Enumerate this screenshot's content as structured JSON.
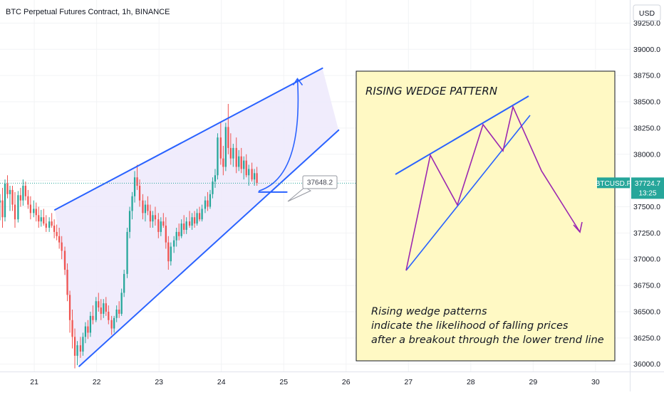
{
  "header": {
    "title": "BTC Perpetual Futures Contract, 1h, BINANCE"
  },
  "price_axis": {
    "currency": "USD"
  },
  "badges": {
    "symbol": "BTCUSD.P",
    "last_price": "37724.7",
    "countdown": "13:25"
  },
  "callout": {
    "value": "37648.2"
  },
  "note": {
    "title": "RISING WEDGE PATTERN",
    "lines": [
      "Rising wedge patterns",
      "indicate the likelihood of falling prices",
      "after a breakout through the lower trend line"
    ]
  },
  "colors": {
    "up": "#26a69a",
    "down": "#ef5350",
    "trendline": "#2962ff",
    "wedge_fill": "#ede9fb",
    "note_bg": "#fff9c4",
    "pattern_line": "#9c27b0",
    "badge": "#26a69a"
  },
  "chart_data": {
    "type": "candlestick",
    "title": "BTC Perpetual Futures Contract, 1h, BINANCE",
    "x_ticks": [
      "21",
      "22",
      "23",
      "24",
      "25",
      "26",
      "27",
      "28",
      "29",
      "30"
    ],
    "y_ticks": [
      "36000.0",
      "36250.0",
      "36500.0",
      "36750.0",
      "37000.0",
      "37250.0",
      "37500.0",
      "37750.0",
      "38000.0",
      "38250.0",
      "38500.0",
      "38750.0",
      "39000.0",
      "39250.0"
    ],
    "ylim": [
      35930,
      39470
    ],
    "xlim": [
      20.45,
      30.55
    ],
    "candle_step_days": 0.0417,
    "last_close": 37724.7,
    "candles": [
      [
        20.45,
        37540,
        37620,
        37370,
        37560
      ],
      [
        20.49,
        37560,
        37680,
        37300,
        37400
      ],
      [
        20.53,
        37400,
        37760,
        37360,
        37720
      ],
      [
        20.57,
        37720,
        37800,
        37580,
        37620
      ],
      [
        20.61,
        37620,
        37700,
        37460,
        37660
      ],
      [
        20.65,
        37660,
        37700,
        37460,
        37520
      ],
      [
        20.69,
        37520,
        37640,
        37300,
        37380
      ],
      [
        20.74,
        37380,
        37650,
        37350,
        37610
      ],
      [
        20.78,
        37610,
        37680,
        37500,
        37560
      ],
      [
        20.82,
        37560,
        37760,
        37510,
        37700
      ],
      [
        20.86,
        37700,
        37740,
        37560,
        37600
      ],
      [
        20.9,
        37600,
        37660,
        37480,
        37520
      ],
      [
        20.94,
        37520,
        37600,
        37380,
        37440
      ],
      [
        20.99,
        37440,
        37560,
        37400,
        37480
      ],
      [
        21.03,
        37480,
        37540,
        37360,
        37420
      ],
      [
        21.07,
        37420,
        37500,
        37300,
        37360
      ],
      [
        21.11,
        37360,
        37470,
        37310,
        37400
      ],
      [
        21.15,
        37400,
        37480,
        37320,
        37340
      ],
      [
        21.19,
        37340,
        37420,
        37260,
        37300
      ],
      [
        21.24,
        37300,
        37400,
        37260,
        37360
      ],
      [
        21.28,
        37360,
        37440,
        37300,
        37320
      ],
      [
        21.32,
        37320,
        37380,
        37200,
        37260
      ],
      [
        21.36,
        37260,
        37330,
        37180,
        37220
      ],
      [
        21.4,
        37220,
        37300,
        37100,
        37160
      ],
      [
        21.44,
        37160,
        37220,
        37000,
        37080
      ],
      [
        21.49,
        37080,
        37120,
        36850,
        36900
      ],
      [
        21.53,
        36900,
        36960,
        36600,
        36660
      ],
      [
        21.57,
        36660,
        36700,
        36300,
        36420
      ],
      [
        21.61,
        36420,
        36520,
        36150,
        36260
      ],
      [
        21.65,
        36260,
        36340,
        35960,
        36080
      ],
      [
        21.69,
        36080,
        36220,
        35990,
        36180
      ],
      [
        21.74,
        36180,
        36260,
        36060,
        36120
      ],
      [
        21.78,
        36120,
        36300,
        36080,
        36260
      ],
      [
        21.82,
        36260,
        36400,
        36200,
        36360
      ],
      [
        21.86,
        36360,
        36420,
        36240,
        36300
      ],
      [
        21.9,
        36300,
        36500,
        36260,
        36460
      ],
      [
        21.94,
        36460,
        36560,
        36380,
        36420
      ],
      [
        21.99,
        36420,
        36640,
        36400,
        36600
      ],
      [
        22.03,
        36600,
        36680,
        36500,
        36540
      ],
      [
        22.07,
        36540,
        36620,
        36420,
        36480
      ],
      [
        22.11,
        36480,
        36620,
        36440,
        36580
      ],
      [
        22.15,
        36580,
        36640,
        36460,
        36500
      ],
      [
        22.19,
        36500,
        36560,
        36380,
        36420
      ],
      [
        22.24,
        36420,
        36460,
        36280,
        36340
      ],
      [
        22.28,
        36340,
        36460,
        36300,
        36440
      ],
      [
        22.32,
        36440,
        36560,
        36400,
        36520
      ],
      [
        22.36,
        36520,
        36600,
        36440,
        36480
      ],
      [
        22.4,
        36480,
        36720,
        36460,
        36680
      ],
      [
        22.44,
        36680,
        36900,
        36640,
        36860
      ],
      [
        22.49,
        36860,
        37300,
        36820,
        37260
      ],
      [
        22.53,
        37260,
        37500,
        37200,
        37460
      ],
      [
        22.57,
        37460,
        37640,
        37380,
        37600
      ],
      [
        22.61,
        37600,
        37840,
        37540,
        37780
      ],
      [
        22.65,
        37780,
        37900,
        37660,
        37700
      ],
      [
        22.69,
        37700,
        37760,
        37500,
        37560
      ],
      [
        22.74,
        37560,
        37620,
        37380,
        37440
      ],
      [
        22.78,
        37440,
        37560,
        37360,
        37520
      ],
      [
        22.82,
        37520,
        37600,
        37420,
        37460
      ],
      [
        22.86,
        37460,
        37520,
        37300,
        37360
      ],
      [
        22.9,
        37360,
        37460,
        37300,
        37420
      ],
      [
        22.94,
        37420,
        37500,
        37320,
        37380
      ],
      [
        22.99,
        37380,
        37440,
        37200,
        37260
      ],
      [
        23.03,
        37260,
        37400,
        37220,
        37360
      ],
      [
        23.07,
        37360,
        37440,
        37300,
        37320
      ],
      [
        23.11,
        37320,
        37400,
        37100,
        37160
      ],
      [
        23.15,
        37160,
        37220,
        36900,
        36980
      ],
      [
        23.19,
        36980,
        37160,
        36940,
        37120
      ],
      [
        23.24,
        37120,
        37220,
        37060,
        37180
      ],
      [
        23.28,
        37180,
        37300,
        37120,
        37260
      ],
      [
        23.32,
        37260,
        37340,
        37180,
        37220
      ],
      [
        23.36,
        37220,
        37380,
        37200,
        37340
      ],
      [
        23.4,
        37340,
        37420,
        37240,
        37280
      ],
      [
        23.44,
        37280,
        37400,
        37240,
        37360
      ],
      [
        23.49,
        37360,
        37460,
        37300,
        37320
      ],
      [
        23.53,
        37320,
        37440,
        37280,
        37400
      ],
      [
        23.57,
        37400,
        37460,
        37300,
        37340
      ],
      [
        23.61,
        37340,
        37480,
        37320,
        37440
      ],
      [
        23.65,
        37440,
        37500,
        37360,
        37380
      ],
      [
        23.69,
        37380,
        37520,
        37360,
        37480
      ],
      [
        23.74,
        37480,
        37600,
        37440,
        37560
      ],
      [
        23.78,
        37560,
        37640,
        37460,
        37500
      ],
      [
        23.82,
        37500,
        37660,
        37480,
        37620
      ],
      [
        23.86,
        37620,
        37780,
        37580,
        37740
      ],
      [
        23.9,
        37740,
        37860,
        37680,
        37800
      ],
      [
        23.94,
        37800,
        38200,
        37760,
        38160
      ],
      [
        23.99,
        38160,
        38300,
        37900,
        37960
      ],
      [
        24.03,
        37960,
        38080,
        37800,
        37880
      ],
      [
        24.07,
        37880,
        38300,
        37840,
        38260
      ],
      [
        24.11,
        38260,
        38480,
        38000,
        38060
      ],
      [
        24.15,
        38060,
        38200,
        37900,
        37960
      ],
      [
        24.19,
        37960,
        38100,
        37880,
        38060
      ],
      [
        24.24,
        38060,
        38160,
        37820,
        37880
      ],
      [
        24.28,
        37880,
        38040,
        37840,
        37980
      ],
      [
        24.32,
        37980,
        38060,
        37820,
        37860
      ],
      [
        24.36,
        37860,
        37980,
        37760,
        37940
      ],
      [
        24.4,
        37940,
        38000,
        37780,
        37800
      ],
      [
        24.44,
        37800,
        37900,
        37700,
        37860
      ],
      [
        24.49,
        37860,
        37920,
        37740,
        37760
      ],
      [
        24.53,
        37760,
        37860,
        37700,
        37820
      ],
      [
        24.57,
        37820,
        37880,
        37700,
        37724.7
      ]
    ],
    "annotations": {
      "upper_trend_line": [
        [
          21.33,
          37470
        ],
        [
          25.62,
          38820
        ]
      ],
      "lower_trend_line": [
        [
          21.72,
          35980
        ],
        [
          25.88,
          38230
        ]
      ],
      "support_line": [
        [
          24.6,
          37640
        ],
        [
          25.05,
          37640
        ]
      ],
      "projection_arrow": [
        [
          24.6,
          37650
        ],
        [
          25.22,
          38720
        ]
      ],
      "callout_label": "37648.2",
      "note_box": {
        "title": "RISING WEDGE PATTERN",
        "text": [
          "Rising wedge patterns",
          "indicate the likelihood of falling prices",
          "after a breakout through the lower trend line"
        ]
      }
    }
  }
}
